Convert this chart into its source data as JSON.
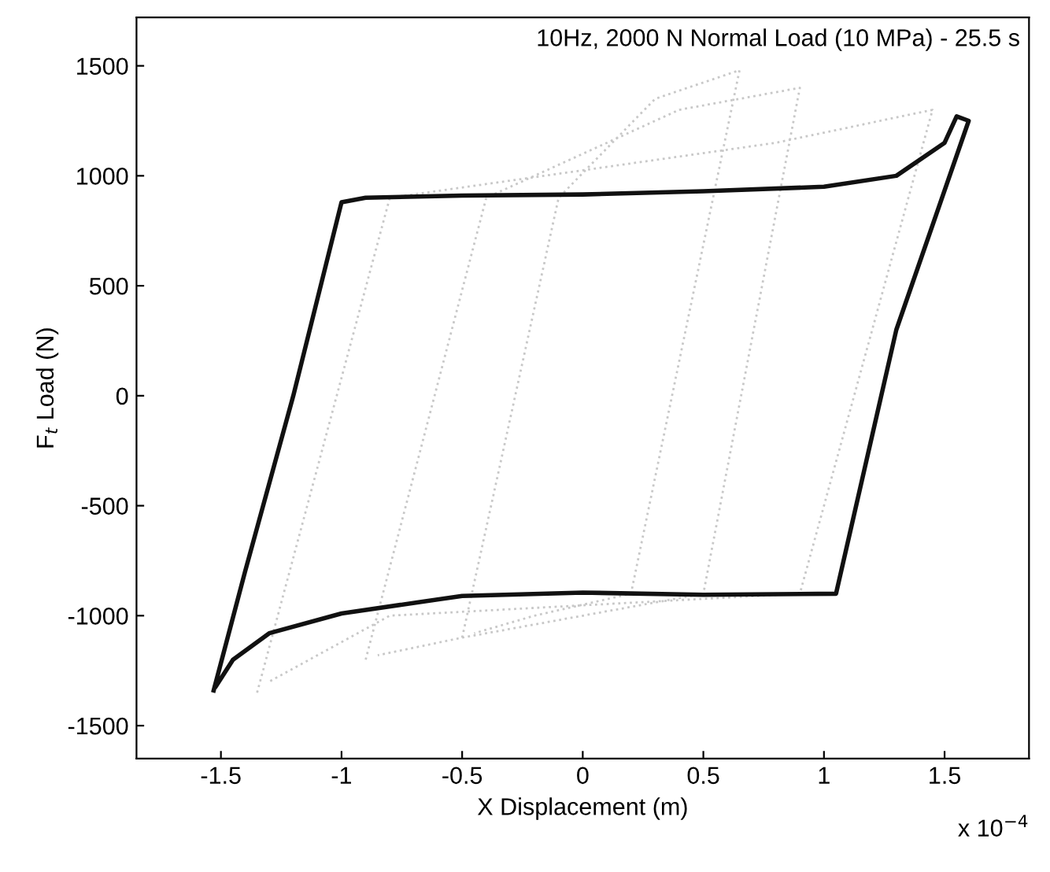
{
  "chart_data": {
    "type": "line",
    "title": "10Hz, 2000 N Normal Load (10 MPa) - 25.5 s",
    "xlabel": "X Displacement (m)",
    "ylabel": "F$_{t}$ Load (N)",
    "annotations": [
      "x 10$^{−4}$"
    ],
    "xlim": [
      -1.85,
      1.85
    ],
    "ylim": [
      -1650,
      1720
    ],
    "xticks": [
      -1.5,
      -1,
      -0.5,
      0,
      0.5,
      1,
      1.5
    ],
    "yticks": [
      -1500,
      -1000,
      -500,
      0,
      500,
      1000,
      1500
    ],
    "grid": false,
    "legend": false,
    "series": [
      {
        "color": "#c8c8c8",
        "line_style": "dotted",
        "x": [
          -1.35,
          -0.8,
          0.8,
          1.45,
          0.9,
          -0.8,
          -1.3
        ],
        "values": [
          -1350,
          900,
          1150,
          1300,
          -900,
          -1000,
          -1300
        ]
      },
      {
        "color": "#c8c8c8",
        "line_style": "dotted",
        "x": [
          -0.9,
          -0.4,
          0.4,
          0.9,
          0.5,
          -0.5,
          -0.85
        ],
        "values": [
          -1200,
          900,
          1300,
          1400,
          -900,
          -1100,
          -1180
        ]
      },
      {
        "color": "#c8c8c8",
        "line_style": "dotted",
        "x": [
          -0.5,
          -0.1,
          0.3,
          0.65,
          0.2,
          -0.2,
          -0.45
        ],
        "values": [
          -1100,
          900,
          1350,
          1480,
          -900,
          -1000,
          -1080
        ]
      },
      {
        "color": "#111111",
        "line_style": "solid",
        "x": [
          -1.53,
          -1.4,
          -1.2,
          -1.0,
          -0.9,
          -0.5,
          0,
          0.5,
          1.0,
          1.3,
          1.5,
          1.55,
          1.6,
          1.3,
          1.05,
          0.5,
          0,
          -0.5,
          -1.0,
          -1.3,
          -1.45,
          -1.52
        ],
        "values": [
          -1340,
          -800,
          0,
          880,
          900,
          910,
          915,
          930,
          950,
          1000,
          1150,
          1270,
          1250,
          300,
          -900,
          -905,
          -895,
          -910,
          -990,
          -1080,
          -1200,
          -1320
        ]
      }
    ]
  }
}
